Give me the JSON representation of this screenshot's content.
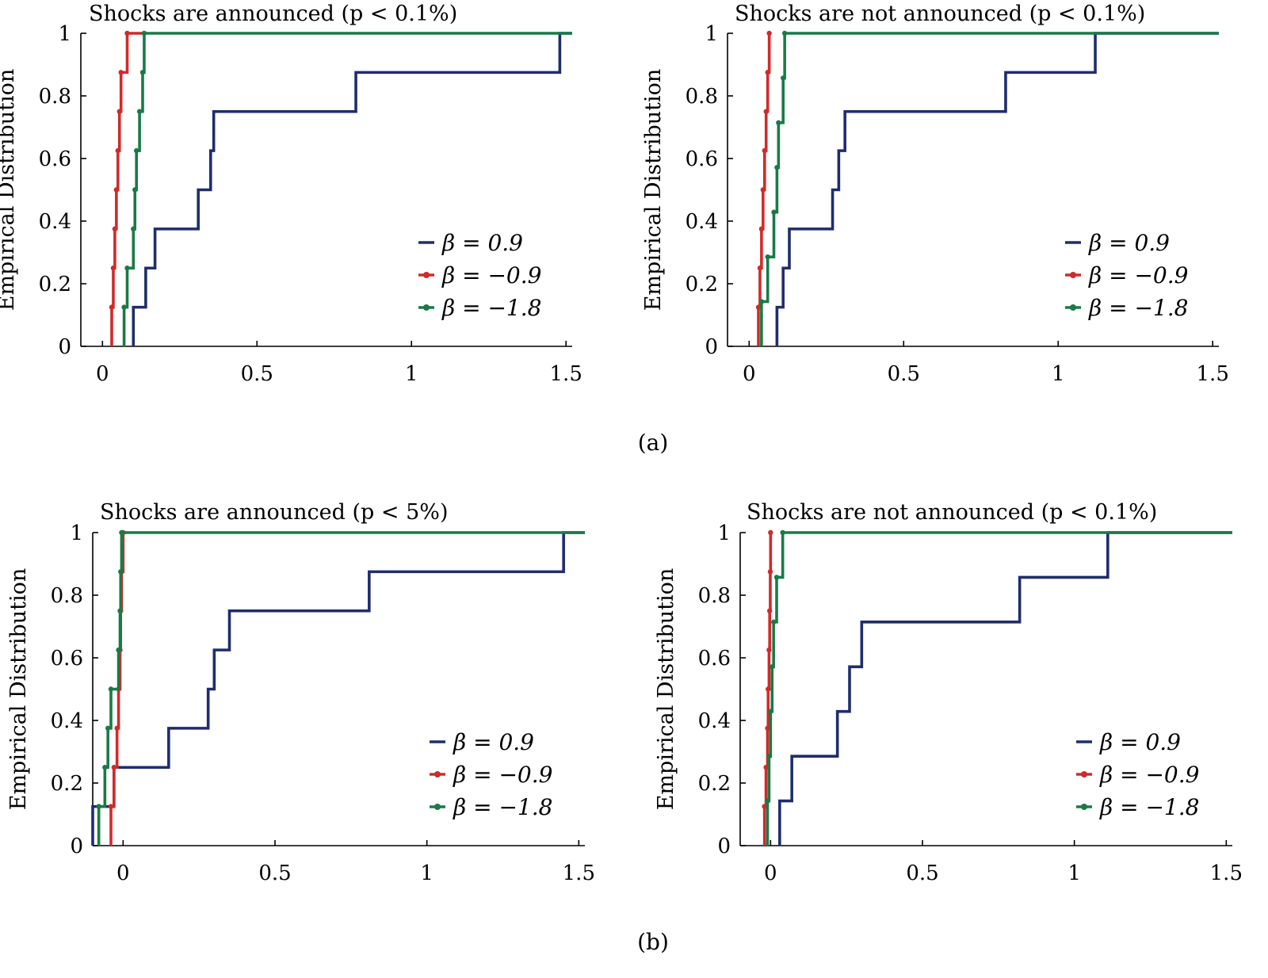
{
  "colors": {
    "beta_0_9": "#1f2d6e",
    "beta_neg_0_9": "#d12a2a",
    "beta_neg_1_8": "#1a7a47"
  },
  "captions": [
    "(a)",
    "(b)"
  ],
  "chart_data": [
    {
      "type": "line",
      "title": "Shocks are announced (p < 0.1%)",
      "ylabel": "Empirical Distribution",
      "xlabel": "",
      "xlim": [
        -0.07,
        1.52
      ],
      "ylim": [
        0,
        1
      ],
      "xticks": [
        "0",
        "0.5",
        "1",
        "1.5"
      ],
      "yticks": [
        "0",
        "0.2",
        "0.4",
        "0.6",
        "0.8",
        "1"
      ],
      "legend_position": "bottom-right",
      "series": [
        {
          "name": "β = 0.9",
          "color": "#1f2d6e",
          "markers": false,
          "x": [
            0.1,
            0.14,
            0.17,
            0.31,
            0.35,
            0.36,
            0.82,
            1.48
          ],
          "x_end": 1.52
        },
        {
          "name": "β = −0.9",
          "color": "#d12a2a",
          "markers": true,
          "x": [
            0.03,
            0.035,
            0.04,
            0.045,
            0.05,
            0.055,
            0.06,
            0.08
          ],
          "x_end": 0.13
        },
        {
          "name": "β = −1.8",
          "color": "#1a7a47",
          "markers": true,
          "x": [
            0.07,
            0.08,
            0.1,
            0.105,
            0.11,
            0.12,
            0.13,
            0.135
          ],
          "x_end": 1.52
        }
      ]
    },
    {
      "type": "line",
      "title": "Shocks are not announced (p < 0.1%)",
      "ylabel": "Empirical Distribution",
      "xlabel": "",
      "xlim": [
        -0.07,
        1.52
      ],
      "ylim": [
        0,
        1
      ],
      "xticks": [
        "0",
        "0.5",
        "1",
        "1.5"
      ],
      "yticks": [
        "0",
        "0.2",
        "0.4",
        "0.6",
        "0.8",
        "1"
      ],
      "legend_position": "bottom-right",
      "series": [
        {
          "name": "β = 0.9",
          "color": "#1f2d6e",
          "markers": false,
          "x": [
            0.09,
            0.11,
            0.13,
            0.27,
            0.29,
            0.31,
            0.83,
            1.12
          ],
          "x_end": 1.52
        },
        {
          "name": "β = −0.9",
          "color": "#d12a2a",
          "markers": true,
          "x": [
            0.03,
            0.035,
            0.04,
            0.045,
            0.05,
            0.055,
            0.06,
            0.065
          ],
          "x_end": 0.065
        },
        {
          "name": "β = −1.8",
          "color": "#1a7a47",
          "markers": true,
          "x": [
            0.04,
            0.06,
            0.08,
            0.09,
            0.095,
            0.11,
            0.115
          ],
          "x_end": 1.52
        }
      ]
    },
    {
      "type": "line",
      "title": "Shocks are announced (p < 5%)",
      "ylabel": "Empirical Distribution",
      "xlabel": "",
      "xlim": [
        -0.1,
        1.52
      ],
      "ylim": [
        0,
        1
      ],
      "xticks": [
        "0",
        "0.5",
        "1",
        "1.5"
      ],
      "yticks": [
        "0",
        "0.2",
        "0.4",
        "0.6",
        "0.8",
        "1"
      ],
      "legend_position": "bottom-right",
      "series": [
        {
          "name": "β = 0.9",
          "color": "#1f2d6e",
          "markers": false,
          "x": [
            -0.1,
            -0.03,
            0.15,
            0.28,
            0.3,
            0.35,
            0.81,
            1.45
          ],
          "x_end": 1.52
        },
        {
          "name": "β = −0.9",
          "color": "#d12a2a",
          "markers": true,
          "x": [
            -0.04,
            -0.03,
            -0.02,
            -0.015,
            -0.01,
            -0.008,
            -0.005,
            0.0
          ],
          "x_end": 0.01
        },
        {
          "name": "β = −1.8",
          "color": "#1a7a47",
          "markers": true,
          "x": [
            -0.08,
            -0.06,
            -0.05,
            -0.04,
            -0.015,
            -0.01,
            -0.008,
            -0.005
          ],
          "x_end": 1.52
        }
      ]
    },
    {
      "type": "line",
      "title": "Shocks are not announced (p < 0.1%)",
      "ylabel": "Empirical Distribution",
      "xlabel": "",
      "xlim": [
        -0.1,
        1.52
      ],
      "ylim": [
        0,
        1
      ],
      "xticks": [
        "0",
        "0.5",
        "1",
        "1.5"
      ],
      "yticks": [
        "0",
        "0.2",
        "0.4",
        "0.6",
        "0.8",
        "1"
      ],
      "legend_position": "bottom-right",
      "series": [
        {
          "name": "β = 0.9",
          "color": "#1f2d6e",
          "markers": false,
          "x": [
            0.03,
            0.07,
            0.22,
            0.26,
            0.3,
            0.82,
            1.11
          ],
          "x_end": 1.52
        },
        {
          "name": "β = −0.9",
          "color": "#d12a2a",
          "markers": true,
          "x": [
            -0.02,
            -0.015,
            -0.01,
            -0.008,
            -0.005,
            -0.003,
            -0.001,
            0.0
          ],
          "x_end": 0.0
        },
        {
          "name": "β = −1.8",
          "color": "#1a7a47",
          "markers": true,
          "x": [
            -0.01,
            -0.005,
            0.0,
            0.005,
            0.01,
            0.02,
            0.04
          ],
          "x_end": 1.52
        }
      ]
    }
  ]
}
